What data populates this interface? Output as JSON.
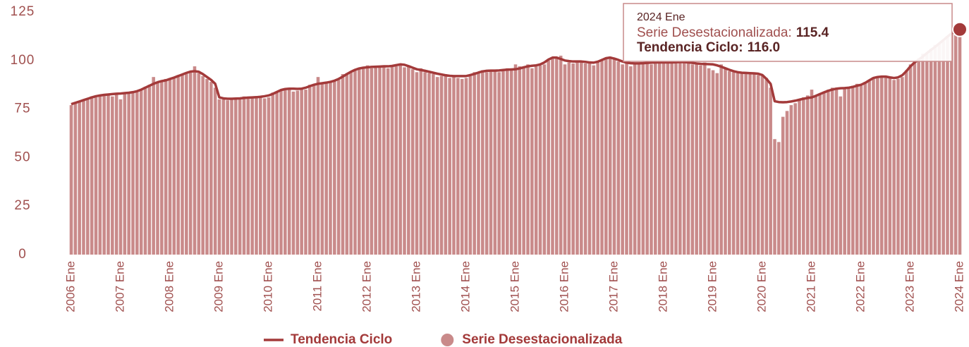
{
  "chart_data": {
    "type": "bar-line",
    "categories": [
      "2006 Ene",
      null,
      null,
      null,
      null,
      null,
      null,
      null,
      null,
      null,
      null,
      null,
      "2007 Ene",
      null,
      null,
      null,
      null,
      null,
      null,
      null,
      null,
      null,
      null,
      null,
      "2008 Ene",
      null,
      null,
      null,
      null,
      null,
      null,
      null,
      null,
      null,
      null,
      null,
      "2009 Ene",
      null,
      null,
      null,
      null,
      null,
      null,
      null,
      null,
      null,
      null,
      null,
      "2010 Ene",
      null,
      null,
      null,
      null,
      null,
      null,
      null,
      null,
      null,
      null,
      null,
      "2011 Ene",
      null,
      null,
      null,
      null,
      null,
      null,
      null,
      null,
      null,
      null,
      null,
      "2012 Ene",
      null,
      null,
      null,
      null,
      null,
      null,
      null,
      null,
      null,
      null,
      null,
      "2013 Ene",
      null,
      null,
      null,
      null,
      null,
      null,
      null,
      null,
      null,
      null,
      null,
      "2014 Ene",
      null,
      null,
      null,
      null,
      null,
      null,
      null,
      null,
      null,
      null,
      null,
      "2015 Ene",
      null,
      null,
      null,
      null,
      null,
      null,
      null,
      null,
      null,
      null,
      null,
      "2016 Ene",
      null,
      null,
      null,
      null,
      null,
      null,
      null,
      null,
      null,
      null,
      null,
      "2017 Ene",
      null,
      null,
      null,
      null,
      null,
      null,
      null,
      null,
      null,
      null,
      null,
      "2018 Ene",
      null,
      null,
      null,
      null,
      null,
      null,
      null,
      null,
      null,
      null,
      null,
      "2019 Ene",
      null,
      null,
      null,
      null,
      null,
      null,
      null,
      null,
      null,
      null,
      null,
      "2020 Ene",
      null,
      null,
      null,
      null,
      null,
      null,
      null,
      null,
      null,
      null,
      null,
      "2021 Ene",
      null,
      null,
      null,
      null,
      null,
      null,
      null,
      null,
      null,
      null,
      null,
      "2022 Ene",
      null,
      null,
      null,
      null,
      null,
      null,
      null,
      null,
      null,
      null,
      null,
      "2023 Ene",
      null,
      null,
      null,
      null,
      null,
      null,
      null,
      null,
      null,
      null,
      null,
      "2024 Ene"
    ],
    "series": [
      {
        "name": "Tendencia Ciclo",
        "kind": "line",
        "color": "#a33a3a",
        "values": [
          77.5,
          78.2,
          78.9,
          79.6,
          80.3,
          81,
          81.6,
          82,
          82.3,
          82.5,
          82.7,
          82.9,
          83,
          83.2,
          83.4,
          83.7,
          84.2,
          85,
          86,
          87,
          88,
          88.8,
          89.4,
          89.8,
          90.5,
          91.2,
          92,
          92.8,
          93.6,
          94.3,
          94.5,
          94.2,
          93,
          91.5,
          90,
          88,
          81,
          80.5,
          80.3,
          80.3,
          80.4,
          80.5,
          80.7,
          80.9,
          81,
          81.1,
          81.3,
          81.6,
          82,
          82.8,
          83.8,
          84.8,
          85.3,
          85.5,
          85.5,
          85.4,
          85.5,
          86,
          86.8,
          87.5,
          88,
          88.3,
          88.6,
          89,
          89.6,
          90.5,
          91.7,
          93,
          94.2,
          95.2,
          95.9,
          96.3,
          96.5,
          96.7,
          96.8,
          96.9,
          97,
          97,
          97.2,
          97.6,
          98,
          97.8,
          97.1,
          96.3,
          95.5,
          95.1,
          94.7,
          94.2,
          93.7,
          93.2,
          92.8,
          92.4,
          92.1,
          92,
          92,
          92,
          92,
          92.5,
          93.1,
          93.8,
          94.4,
          94.7,
          94.8,
          94.8,
          94.9,
          95.1,
          95.3,
          95.4,
          95.5,
          95.9,
          96.5,
          97,
          97.3,
          97.5,
          98,
          99,
          100.5,
          101.5,
          101.5,
          100.8,
          100,
          99.7,
          99.5,
          99.5,
          99.5,
          99.3,
          99,
          98.9,
          99.4,
          100.3,
          101.2,
          101.5,
          101,
          100.3,
          99.5,
          98.9,
          98.6,
          98.5,
          98.5,
          98.6,
          98.8,
          98.9,
          99,
          99,
          99,
          99,
          99,
          99.1,
          99.2,
          99.2,
          99,
          98.8,
          98.5,
          98.3,
          98.2,
          98.1,
          98,
          97.5,
          96.8,
          96,
          95.2,
          94.5,
          94,
          93.7,
          93.6,
          93.5,
          93.4,
          93.2,
          92.5,
          90.5,
          88,
          79,
          78.6,
          78.5,
          78.6,
          78.9,
          79.3,
          79.8,
          80.3,
          80.7,
          81,
          81.8,
          82.7,
          83.6,
          84.4,
          85,
          85.5,
          85.7,
          85.8,
          86,
          86.4,
          87,
          87.5,
          88.5,
          89.8,
          91,
          91.5,
          91.7,
          91.7,
          91.3,
          91,
          91.3,
          92.4,
          94.5,
          97,
          99,
          100.5,
          102,
          103.8,
          105.5,
          107,
          108.8,
          110.5,
          112.3,
          114,
          115.3,
          116.0
        ]
      },
      {
        "name": "Serie Desestacionalizada",
        "kind": "bar",
        "color": "#c98a8a",
        "values": [
          77,
          78.5,
          79,
          79.8,
          80,
          81.5,
          81,
          82.2,
          82,
          82.4,
          81.5,
          83,
          80,
          83.5,
          83,
          84,
          84.5,
          85.2,
          86.5,
          87.5,
          91.5,
          88.5,
          89,
          90.5,
          91,
          91.5,
          92.5,
          93,
          93,
          94,
          97,
          93.5,
          92,
          90.5,
          89,
          86,
          80,
          80,
          79.5,
          80.5,
          80,
          80.5,
          81.5,
          81,
          80.5,
          81,
          81,
          80.5,
          81,
          83.5,
          84,
          85,
          85,
          85.5,
          84,
          84.5,
          86,
          85,
          87.5,
          87.5,
          91.5,
          88,
          88.5,
          89,
          89.5,
          90,
          93,
          93.5,
          94.5,
          95,
          96,
          96.5,
          97.5,
          96,
          96.5,
          96.5,
          97.5,
          96,
          97.5,
          97,
          98.5,
          96.5,
          97.5,
          95.5,
          94,
          96,
          94,
          93.5,
          93,
          91.5,
          92,
          93,
          91,
          91.5,
          91,
          90.5,
          91,
          92,
          94,
          94,
          95,
          94,
          95,
          95,
          94,
          95.5,
          96,
          95,
          98,
          97,
          96.5,
          98,
          96,
          97,
          97.5,
          98,
          100,
          101,
          101.5,
          102.5,
          98,
          99,
          98.5,
          100,
          99,
          98.5,
          99,
          97.5,
          99.5,
          100,
          101,
          102,
          101,
          99.5,
          98,
          99,
          97,
          98.5,
          98,
          98.5,
          99,
          98,
          99.5,
          98.5,
          98.5,
          99.5,
          99,
          98.5,
          99.5,
          100,
          99,
          98,
          98.5,
          97.5,
          99,
          96,
          95,
          93.5,
          98,
          96,
          94.5,
          94,
          93.5,
          94,
          93.5,
          93,
          93.5,
          92.5,
          92,
          91,
          86,
          59.5,
          58,
          71,
          74,
          77,
          78,
          80,
          81,
          82,
          85,
          82,
          83,
          84,
          85,
          86,
          86,
          81.5,
          86,
          86.5,
          87,
          88,
          87,
          89,
          89.5,
          90.5,
          91,
          92,
          91.5,
          91,
          90,
          90.5,
          91.5,
          95,
          98,
          99.5,
          101,
          103.5,
          104,
          106,
          108,
          109,
          110,
          112,
          114,
          115,
          115.4
        ]
      }
    ],
    "ylim": [
      0,
      125
    ],
    "yticks": [
      0,
      25,
      50,
      75,
      100,
      125
    ],
    "grid": false,
    "legend": "bottom",
    "tooltip": {
      "title": "2024 Ene",
      "items": [
        {
          "label": "Serie Desestacionalizada:",
          "value": "115.4"
        },
        {
          "label": "Tendencia Ciclo:",
          "value": "116.0"
        }
      ]
    }
  }
}
